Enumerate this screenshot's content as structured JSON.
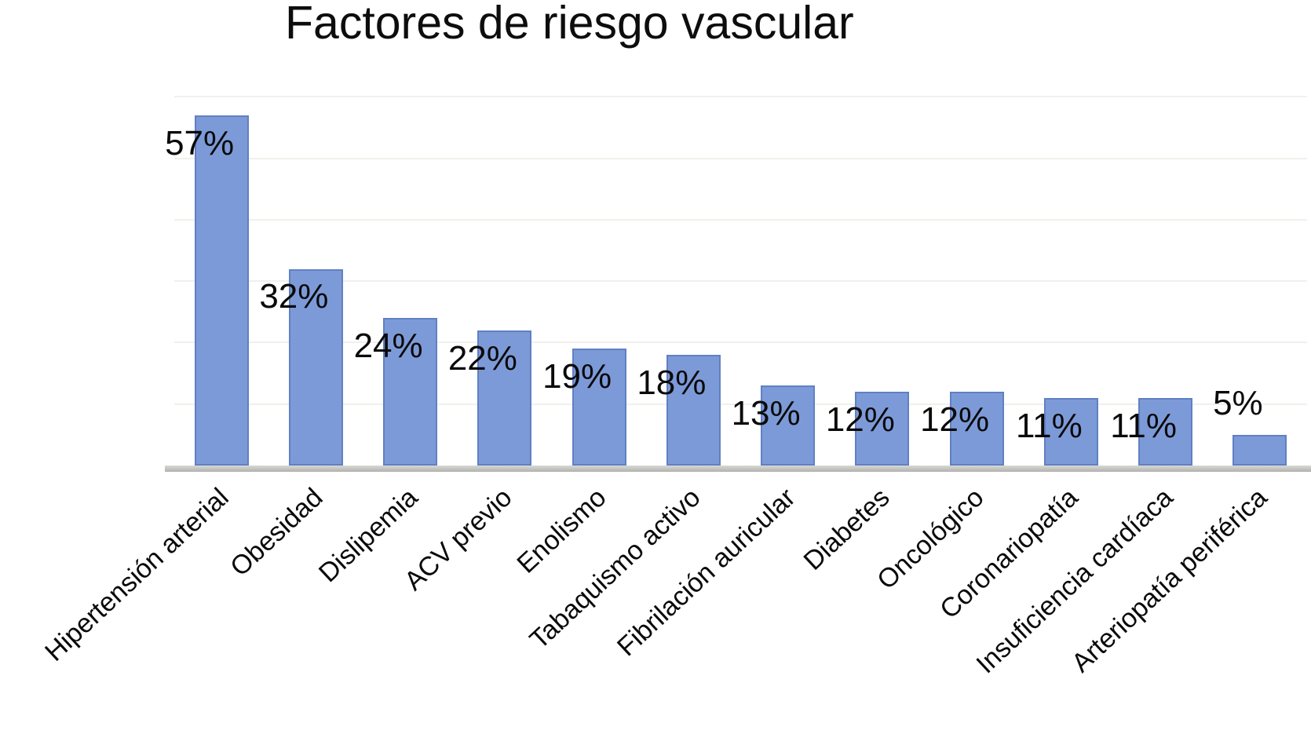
{
  "chart_data": {
    "type": "bar",
    "title": "Factores de riesgo vascular",
    "categories": [
      "Hipertensión arterial",
      "Obesidad",
      "Dislipemia",
      "ACV previo",
      "Enolismo",
      "Tabaquismo activo",
      "Fibrilación auricular",
      "Diabetes",
      "Oncológico",
      "Coronariopatía",
      "Insuficiencia cardíaca",
      "Arteriopatía periférica"
    ],
    "values": [
      57,
      32,
      24,
      22,
      19,
      18,
      13,
      12,
      12,
      11,
      11,
      5
    ],
    "data_labels": [
      "57%",
      "32%",
      "24%",
      "22%",
      "19%",
      "18%",
      "13%",
      "12%",
      "12%",
      "11%",
      "11%",
      "5%"
    ],
    "xlabel": "",
    "ylabel": "",
    "ylim": [
      0,
      61.7
    ],
    "gridlines_pct": [
      10,
      20,
      30,
      40,
      50,
      60
    ],
    "grid": true,
    "legend": false,
    "x_label_rotation_deg": -43,
    "colors": {
      "bar_fill": "#7d9ad8",
      "bar_border": "#6080c2",
      "gridline": "#f3efeb",
      "axis_top": "#d8d8d5",
      "axis_bottom": "#b1b1ae",
      "text": "#0a0a0a"
    }
  }
}
